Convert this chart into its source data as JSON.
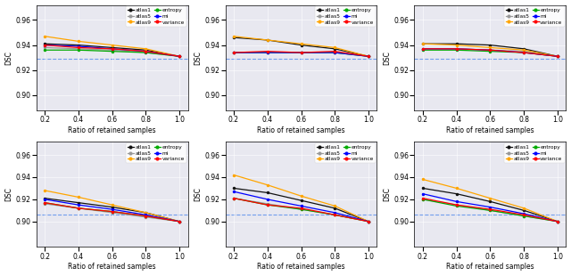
{
  "x": [
    0.2,
    0.4,
    0.6,
    0.8,
    1.0
  ],
  "colors": {
    "atlas1": "#111111",
    "atlas5": "#999999",
    "atlas9": "#FFA500",
    "entropy": "#00AA00",
    "mi": "#0000FF",
    "variance": "#FF0000"
  },
  "series_order": [
    "atlas1",
    "atlas5",
    "atlas9",
    "entropy",
    "mi",
    "variance"
  ],
  "subplots": [
    {
      "row": 0,
      "col": 0,
      "ylim": [
        0.888,
        0.972
      ],
      "yticks": [
        0.9,
        0.92,
        0.94,
        0.96
      ],
      "baseline": 0.929,
      "data": {
        "atlas1": [
          0.941,
          0.94,
          0.938,
          0.936,
          0.931
        ],
        "atlas5": [
          0.938,
          0.937,
          0.936,
          0.934,
          0.931
        ],
        "atlas9": [
          0.947,
          0.943,
          0.94,
          0.937,
          0.931
        ],
        "entropy": [
          0.936,
          0.936,
          0.935,
          0.934,
          0.931
        ],
        "mi": [
          0.94,
          0.939,
          0.937,
          0.935,
          0.931
        ],
        "variance": [
          0.94,
          0.938,
          0.937,
          0.935,
          0.931
        ]
      }
    },
    {
      "row": 0,
      "col": 1,
      "ylim": [
        0.888,
        0.972
      ],
      "yticks": [
        0.9,
        0.92,
        0.94,
        0.96
      ],
      "baseline": 0.929,
      "data": {
        "atlas1": [
          0.946,
          0.944,
          0.94,
          0.937,
          0.931
        ],
        "atlas5": [
          0.934,
          0.934,
          0.934,
          0.934,
          0.931
        ],
        "atlas9": [
          0.947,
          0.944,
          0.941,
          0.938,
          0.931
        ],
        "entropy": [
          0.934,
          0.934,
          0.934,
          0.934,
          0.931
        ],
        "mi": [
          0.934,
          0.934,
          0.934,
          0.934,
          0.931
        ],
        "variance": [
          0.934,
          0.935,
          0.934,
          0.935,
          0.931
        ]
      }
    },
    {
      "row": 0,
      "col": 2,
      "ylim": [
        0.888,
        0.972
      ],
      "yticks": [
        0.9,
        0.92,
        0.94,
        0.96
      ],
      "baseline": 0.929,
      "data": {
        "atlas1": [
          0.941,
          0.941,
          0.94,
          0.937,
          0.931
        ],
        "atlas5": [
          0.937,
          0.937,
          0.936,
          0.935,
          0.931
        ],
        "atlas9": [
          0.941,
          0.94,
          0.938,
          0.936,
          0.931
        ],
        "entropy": [
          0.936,
          0.936,
          0.935,
          0.934,
          0.931
        ],
        "mi": [
          0.937,
          0.937,
          0.936,
          0.934,
          0.931
        ],
        "variance": [
          0.937,
          0.937,
          0.936,
          0.934,
          0.931
        ]
      }
    },
    {
      "row": 1,
      "col": 0,
      "ylim": [
        0.877,
        0.972
      ],
      "yticks": [
        0.9,
        0.92,
        0.94,
        0.96
      ],
      "baseline": 0.906,
      "data": {
        "atlas1": [
          0.921,
          0.917,
          0.913,
          0.908,
          0.9
        ],
        "atlas5": [
          0.916,
          0.912,
          0.908,
          0.904,
          0.9
        ],
        "atlas9": [
          0.928,
          0.922,
          0.915,
          0.908,
          0.9
        ],
        "entropy": [
          0.917,
          0.912,
          0.909,
          0.905,
          0.9
        ],
        "mi": [
          0.92,
          0.915,
          0.911,
          0.906,
          0.9
        ],
        "variance": [
          0.917,
          0.912,
          0.909,
          0.905,
          0.9
        ]
      }
    },
    {
      "row": 1,
      "col": 1,
      "ylim": [
        0.877,
        0.972
      ],
      "yticks": [
        0.9,
        0.92,
        0.94,
        0.96
      ],
      "baseline": 0.906,
      "data": {
        "atlas1": [
          0.93,
          0.926,
          0.919,
          0.912,
          0.9
        ],
        "atlas5": [
          0.921,
          0.916,
          0.911,
          0.906,
          0.9
        ],
        "atlas9": [
          0.942,
          0.933,
          0.923,
          0.914,
          0.9
        ],
        "entropy": [
          0.921,
          0.915,
          0.911,
          0.906,
          0.9
        ],
        "mi": [
          0.927,
          0.92,
          0.914,
          0.908,
          0.9
        ],
        "variance": [
          0.921,
          0.915,
          0.912,
          0.906,
          0.9
        ]
      }
    },
    {
      "row": 1,
      "col": 2,
      "ylim": [
        0.877,
        0.972
      ],
      "yticks": [
        0.9,
        0.92,
        0.94,
        0.96
      ],
      "baseline": 0.906,
      "data": {
        "atlas1": [
          0.93,
          0.925,
          0.918,
          0.91,
          0.9
        ],
        "atlas5": [
          0.92,
          0.915,
          0.91,
          0.905,
          0.9
        ],
        "atlas9": [
          0.938,
          0.93,
          0.921,
          0.912,
          0.9
        ],
        "entropy": [
          0.92,
          0.914,
          0.91,
          0.905,
          0.9
        ],
        "mi": [
          0.925,
          0.918,
          0.913,
          0.907,
          0.9
        ],
        "variance": [
          0.921,
          0.915,
          0.911,
          0.906,
          0.9
        ]
      }
    }
  ],
  "xlabel": "Ratio of retained samples",
  "ylabel": "DSC",
  "bg_color": "#e8e8f0",
  "figsize": [
    6.4,
    3.1
  ],
  "dpi": 100
}
